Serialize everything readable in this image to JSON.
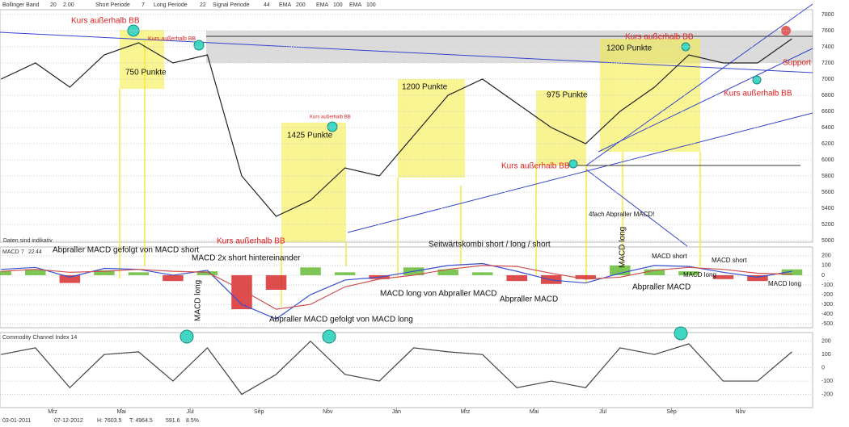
{
  "header": {
    "items": [
      {
        "label": "Bollinger Band",
        "params": [
          "20",
          "2.00"
        ]
      },
      {
        "label": "Short Periode",
        "params": [
          "7"
        ]
      },
      {
        "label": "Long Periode",
        "params": [
          "22"
        ]
      },
      {
        "label": "Signal Periode",
        "params": [
          "44"
        ]
      },
      {
        "label": "EMA",
        "params": [
          "200"
        ]
      },
      {
        "label": "EMA",
        "params": [
          "100"
        ]
      },
      {
        "label": "EMA",
        "params": [
          "100"
        ]
      }
    ]
  },
  "footer": {
    "items": [
      "03-01-2011",
      "07-12-2012",
      "H: 7603.5",
      "T: 4964.5",
      "591.6",
      "8.5%"
    ]
  },
  "annotations": [
    "Kurs außerhalb BB",
    "Kurs außerhalb BB",
    "750 Punkte",
    "Kurs außerhalb BB",
    "1425 Punkte",
    "1200 Punkte",
    "975 Punkte",
    "1200 Punkte",
    "Kurs außerhalb BB",
    "Kurs außerhalb BB",
    "Kurs außerhalb BB",
    "Support",
    "Kurs außerhalb BB",
    "4fach Abpraller MACD!",
    "Abpraller MACD gefolgt von MACD short",
    "MACD 2x short hintereinander",
    "MACD long",
    "Abpraller MACD gefolgt von MACD long",
    "MACD long von Abpraller MACD",
    "Seitwärtskombi short / long / short",
    "Abpraller MACD",
    "MACD long",
    "Abpraller MACD",
    "MACD short",
    "MACD short",
    "MACD long",
    "MACD long"
  ],
  "chart_data": [
    {
      "type": "line",
      "note": "Daten sind indikativ",
      "color": "#222222",
      "x": [
        0.5,
        1.5,
        2.5,
        3.5,
        4.5,
        5.5,
        6.5,
        7.5,
        8.5,
        9.5,
        10.5,
        11.5,
        12.5,
        13.5,
        14.5,
        15.5,
        16.5,
        17.5,
        18.5,
        19.5,
        20.5,
        21.5,
        22.5,
        23.5
      ],
      "values": [
        7000,
        7200,
        6900,
        7300,
        7450,
        7200,
        7300,
        5800,
        5300,
        5500,
        5900,
        5800,
        6300,
        6800,
        7000,
        6700,
        6400,
        6200,
        6600,
        6900,
        7300,
        7200,
        7200,
        7500
      ],
      "xlim": [
        0.47,
        24.1
      ],
      "ylim": [
        4980,
        7860
      ],
      "yticks": [
        5000,
        5200,
        5400,
        5600,
        5800,
        6000,
        6200,
        6400,
        6600,
        6800,
        7000,
        7200,
        7400,
        7600,
        7800
      ],
      "grid": true
    },
    {
      "type": "macd",
      "title": "MACD",
      "params": [
        7,
        22,
        44
      ],
      "pos_color": "#5cb82a",
      "neg_color": "#d42020",
      "x": [
        0.5,
        1.5,
        2.5,
        3.5,
        4.5,
        5.5,
        6.5,
        7.5,
        8.5,
        9.5,
        10.5,
        11.5,
        12.5,
        13.5,
        14.5,
        15.5,
        16.5,
        17.5,
        18.5,
        19.5,
        20.5,
        21.5,
        22.5,
        23.5
      ],
      "values": [
        40,
        60,
        -80,
        50,
        30,
        -60,
        40,
        -350,
        -150,
        80,
        30,
        -40,
        80,
        60,
        30,
        -60,
        -90,
        -40,
        100,
        60,
        40,
        -40,
        -60,
        60
      ],
      "lines": [
        {
          "color": "#3a4fd0",
          "values": [
            60,
            80,
            -20,
            70,
            60,
            0,
            50,
            -300,
            -450,
            -200,
            -50,
            -20,
            40,
            100,
            120,
            40,
            -50,
            -80,
            20,
            100,
            90,
            30,
            -20,
            40
          ]
        },
        {
          "color": "#d05050",
          "values": [
            40,
            60,
            30,
            40,
            60,
            40,
            30,
            -150,
            -350,
            -300,
            -120,
            -40,
            0,
            60,
            100,
            90,
            20,
            -40,
            -20,
            50,
            80,
            60,
            20,
            10
          ]
        }
      ],
      "xlim": [
        0.47,
        24.1
      ],
      "ylim": [
        -540,
        290
      ],
      "yticks": [
        -500,
        -400,
        -300,
        -200,
        -100,
        0,
        100,
        200
      ],
      "grid": true
    },
    {
      "type": "line",
      "title": "Commodity Channel Index 14",
      "color": "#444444",
      "x": [
        0.5,
        1.5,
        2.5,
        3.5,
        4.5,
        5.5,
        6.5,
        7.5,
        8.5,
        9.5,
        10.5,
        11.5,
        12.5,
        13.5,
        14.5,
        15.5,
        16.5,
        17.5,
        18.5,
        19.5,
        20.5,
        21.5,
        22.5,
        23.5
      ],
      "values": [
        100,
        150,
        -150,
        100,
        120,
        -100,
        150,
        -200,
        -50,
        200,
        -50,
        -100,
        150,
        120,
        100,
        -150,
        -100,
        -150,
        150,
        100,
        180,
        -100,
        -100,
        120
      ],
      "xlim": [
        0.47,
        24.1
      ],
      "ylim": [
        -300,
        265
      ],
      "yticks": [
        -200,
        -100,
        0,
        100,
        200
      ],
      "grid": true,
      "xticks": [
        {
          "value": 2,
          "label": "Mrz"
        },
        {
          "value": 4,
          "label": "Mai"
        },
        {
          "value": 6,
          "label": "Jul"
        },
        {
          "value": 8,
          "label": "Sep"
        },
        {
          "value": 10,
          "label": "Nov"
        },
        {
          "value": 12,
          "label": "Jan"
        },
        {
          "value": 14,
          "label": "Mrz"
        },
        {
          "value": 16,
          "label": "Mai"
        },
        {
          "value": 18,
          "label": "Jul"
        },
        {
          "value": 20,
          "label": "Sep"
        },
        {
          "value": 22,
          "label": "Nov"
        }
      ]
    }
  ]
}
